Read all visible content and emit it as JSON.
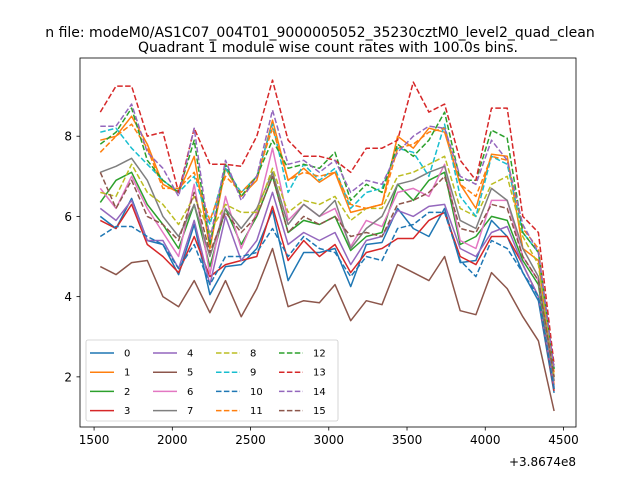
{
  "chart_data": {
    "type": "line",
    "suptitle": "n file: modeM0/AS1C07_004T01_9000005052_35230cztM0_level2_quad_clean",
    "title": "Quadrant 1 module wise count rates with 100.0s bins.",
    "xlabel": "",
    "ylabel": "",
    "x_offset_label": "+3.8674e8",
    "xlim": [
      1410,
      4580
    ],
    "ylim": [
      0.75,
      9.95
    ],
    "xticks": [
      1500,
      2000,
      2500,
      3000,
      3500,
      4000,
      4500
    ],
    "yticks": [
      2,
      4,
      6,
      8
    ],
    "x": [
      1540,
      1640,
      1740,
      1840,
      1940,
      2040,
      2140,
      2240,
      2340,
      2440,
      2540,
      2640,
      2740,
      2840,
      2940,
      3040,
      3140,
      3240,
      3340,
      3440,
      3540,
      3640,
      3740,
      3840,
      3940,
      4040,
      4140,
      4240,
      4340,
      4440
    ],
    "series": [
      {
        "name": "0",
        "color": "#1f77b4",
        "dash": "solid",
        "values": [
          6.0,
          5.7,
          6.45,
          5.4,
          5.3,
          4.55,
          5.8,
          4.05,
          4.75,
          4.8,
          5.2,
          6.15,
          4.4,
          5.1,
          5.1,
          5.2,
          4.25,
          5.3,
          5.35,
          6.2,
          5.7,
          5.5,
          6.2,
          4.85,
          4.9,
          5.9,
          5.5,
          4.6,
          3.9,
          1.6
        ]
      },
      {
        "name": "1",
        "color": "#ff7f0e",
        "dash": "solid",
        "values": [
          7.9,
          8.0,
          8.5,
          7.8,
          6.8,
          6.6,
          7.5,
          5.2,
          7.2,
          6.5,
          6.9,
          8.4,
          6.9,
          7.2,
          6.85,
          7.1,
          6.1,
          6.2,
          6.3,
          8.0,
          7.7,
          8.2,
          8.1,
          6.8,
          6.2,
          7.55,
          7.5,
          5.2,
          4.9,
          1.8
        ]
      },
      {
        "name": "2",
        "color": "#2ca02c",
        "dash": "solid",
        "values": [
          6.35,
          6.9,
          7.1,
          6.3,
          5.8,
          5.2,
          6.3,
          4.75,
          6.2,
          5.3,
          6.0,
          7.0,
          5.6,
          5.9,
          5.8,
          6.0,
          5.15,
          5.5,
          5.6,
          6.8,
          6.4,
          6.9,
          7.1,
          5.3,
          5.5,
          6.0,
          5.9,
          4.9,
          4.3,
          1.7
        ]
      },
      {
        "name": "3",
        "color": "#d62728",
        "dash": "solid",
        "values": [
          5.9,
          5.7,
          6.3,
          5.3,
          5.0,
          4.6,
          5.5,
          4.5,
          4.8,
          4.9,
          5.0,
          6.25,
          4.9,
          5.4,
          5.0,
          5.3,
          4.6,
          5.1,
          5.2,
          5.45,
          5.45,
          5.9,
          6.1,
          5.0,
          4.8,
          5.5,
          5.5,
          4.8,
          4.0,
          1.65
        ]
      },
      {
        "name": "4",
        "color": "#9467bd",
        "dash": "solid",
        "values": [
          6.2,
          5.9,
          6.4,
          5.4,
          5.4,
          4.7,
          5.9,
          4.3,
          6.0,
          4.9,
          5.4,
          6.6,
          5.3,
          5.6,
          5.4,
          5.6,
          4.8,
          5.4,
          5.5,
          6.15,
          6.0,
          6.25,
          6.3,
          5.2,
          5.0,
          5.6,
          5.75,
          4.8,
          4.0,
          1.75
        ]
      },
      {
        "name": "5",
        "color": "#8c564b",
        "dash": "solid",
        "values": [
          4.75,
          4.55,
          4.85,
          4.9,
          4.0,
          3.75,
          4.4,
          3.6,
          4.4,
          3.5,
          4.2,
          5.2,
          3.75,
          3.9,
          3.85,
          4.3,
          3.4,
          3.9,
          3.8,
          4.8,
          4.6,
          4.4,
          5.0,
          3.65,
          3.55,
          4.6,
          4.2,
          3.5,
          2.9,
          1.15
        ]
      },
      {
        "name": "6",
        "color": "#e377c2",
        "dash": "solid",
        "values": [
          6.7,
          6.2,
          7.0,
          6.2,
          5.6,
          5.0,
          6.8,
          4.55,
          6.5,
          5.2,
          6.1,
          7.7,
          5.9,
          6.3,
          6.0,
          6.2,
          5.25,
          5.9,
          5.75,
          6.6,
          6.7,
          6.5,
          7.3,
          5.4,
          5.2,
          6.4,
          6.4,
          5.0,
          4.4,
          1.9
        ]
      },
      {
        "name": "7",
        "color": "#7f7f7f",
        "dash": "solid",
        "values": [
          7.1,
          7.25,
          7.45,
          6.9,
          6.0,
          5.5,
          6.3,
          5.0,
          6.2,
          5.7,
          6.2,
          7.1,
          5.8,
          6.3,
          6.0,
          6.4,
          5.2,
          5.7,
          6.0,
          6.8,
          6.9,
          7.1,
          7.25,
          5.9,
          5.7,
          6.7,
          6.4,
          5.2,
          4.5,
          1.9
        ]
      },
      {
        "name": "8",
        "color": "#bcbd22",
        "dash": "dashed",
        "values": [
          6.6,
          6.5,
          7.3,
          6.6,
          6.3,
          5.8,
          6.5,
          5.6,
          6.3,
          6.1,
          6.1,
          7.2,
          6.1,
          6.4,
          6.3,
          6.5,
          5.9,
          6.2,
          6.2,
          7.0,
          7.1,
          7.3,
          7.5,
          6.2,
          6.0,
          6.8,
          7.0,
          5.5,
          4.8,
          2.0
        ]
      },
      {
        "name": "9",
        "color": "#17becf",
        "dash": "dashed",
        "values": [
          8.1,
          8.2,
          7.7,
          7.3,
          6.9,
          6.6,
          7.0,
          5.8,
          7.2,
          6.6,
          7.0,
          8.3,
          6.6,
          7.3,
          6.9,
          7.2,
          6.2,
          6.6,
          6.7,
          7.7,
          7.6,
          7.0,
          8.3,
          6.5,
          6.0,
          7.5,
          7.3,
          5.6,
          5.1,
          2.2
        ]
      },
      {
        "name": "10",
        "color": "#1f77b4",
        "dash": "dashed",
        "values": [
          5.5,
          5.75,
          5.75,
          5.5,
          5.3,
          4.7,
          5.3,
          4.3,
          5.0,
          5.0,
          5.1,
          5.7,
          5.0,
          5.5,
          5.2,
          5.1,
          4.5,
          5.0,
          4.9,
          5.7,
          5.8,
          6.1,
          6.1,
          4.9,
          4.5,
          5.4,
          5.2,
          4.6,
          4.0,
          1.7
        ]
      },
      {
        "name": "11",
        "color": "#ff7f0e",
        "dash": "dashed",
        "values": [
          7.6,
          8.0,
          8.3,
          7.7,
          6.7,
          6.7,
          7.1,
          5.9,
          7.0,
          6.6,
          7.0,
          8.2,
          6.9,
          7.1,
          7.0,
          7.1,
          6.3,
          6.2,
          6.3,
          7.7,
          7.8,
          8.1,
          8.2,
          6.8,
          6.5,
          7.5,
          7.4,
          5.7,
          5.2,
          2.1
        ]
      },
      {
        "name": "12",
        "color": "#2ca02c",
        "dash": "dashed",
        "values": [
          7.8,
          8.1,
          8.7,
          7.4,
          6.9,
          6.6,
          7.9,
          5.3,
          7.3,
          6.5,
          7.0,
          7.9,
          7.2,
          7.3,
          7.2,
          7.6,
          6.4,
          6.8,
          6.6,
          7.8,
          7.5,
          7.9,
          8.6,
          6.9,
          6.9,
          8.15,
          7.95,
          5.6,
          5.1,
          2.2
        ]
      },
      {
        "name": "13",
        "color": "#d62728",
        "dash": "dashed",
        "values": [
          8.6,
          9.25,
          9.25,
          8.0,
          8.1,
          6.6,
          8.2,
          7.3,
          7.3,
          7.25,
          8.0,
          9.4,
          7.9,
          7.5,
          7.5,
          7.4,
          7.1,
          7.7,
          7.7,
          7.9,
          9.35,
          8.6,
          8.8,
          7.4,
          6.9,
          8.7,
          8.7,
          6.0,
          5.6,
          2.3
        ]
      },
      {
        "name": "14",
        "color": "#9467bd",
        "dash": "dashed",
        "values": [
          8.25,
          8.25,
          8.8,
          7.6,
          7.2,
          6.5,
          8.2,
          5.4,
          7.4,
          6.4,
          7.0,
          8.65,
          7.3,
          7.4,
          7.1,
          7.4,
          6.6,
          6.9,
          6.8,
          7.6,
          8.0,
          8.25,
          8.2,
          7.0,
          6.8,
          7.9,
          7.4,
          5.8,
          5.1,
          2.2
        ]
      },
      {
        "name": "15",
        "color": "#8c564b",
        "dash": "dashed",
        "values": [
          7.1,
          6.2,
          6.9,
          6.0,
          5.8,
          5.4,
          6.6,
          5.1,
          6.1,
          5.6,
          6.0,
          7.0,
          5.6,
          6.0,
          5.8,
          6.0,
          5.5,
          5.6,
          5.5,
          6.3,
          6.4,
          6.6,
          7.0,
          5.7,
          5.6,
          6.3,
          6.2,
          5.0,
          4.4,
          2.0
        ]
      }
    ]
  }
}
